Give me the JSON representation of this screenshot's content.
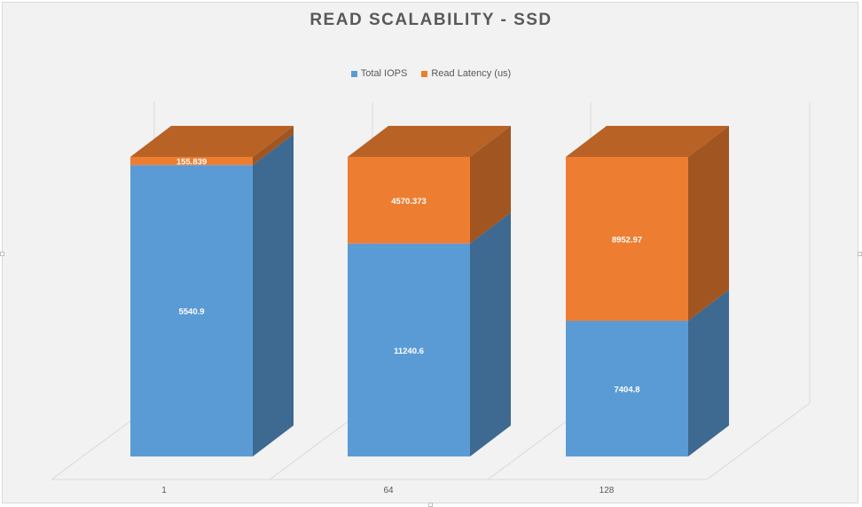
{
  "chart_data": {
    "type": "bar",
    "stacked": true,
    "three_d": true,
    "title": "READ SCALABILITY - SSD",
    "categories": [
      "1",
      "64",
      "128"
    ],
    "series": [
      {
        "name": "Total IOPS",
        "color": "#5b9bd5",
        "values": [
          5540.9,
          11240.6,
          7404.8
        ]
      },
      {
        "name": "Read Latency (us)",
        "color": "#ed7d31",
        "values": [
          155.839,
          4570.373,
          8952.97
        ]
      }
    ],
    "data_labels": [
      [
        "5540.9",
        "11240.6",
        "7404.8"
      ],
      [
        "155.839",
        "4570.373",
        "8952.97"
      ]
    ],
    "percent_stacked": true,
    "legend_position": "top",
    "grid": true
  }
}
